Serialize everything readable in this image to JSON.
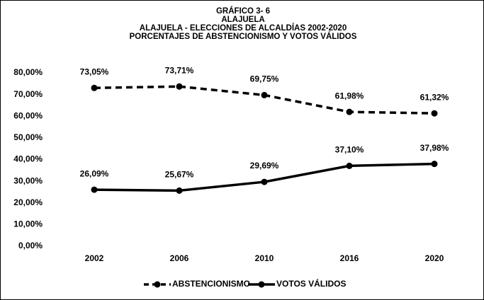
{
  "chart_data": {
    "type": "line",
    "title": [
      "GRÁFICO  3- 6",
      "ALAJUELA",
      "ALAJUELA - ELECCIONES DE ALCALDÍAS 2002-2020",
      "PORCENTAJES DE ABSTENCIONISMO Y VOTOS VÁLIDOS"
    ],
    "categories": [
      "2002",
      "2006",
      "2010",
      "2016",
      "2020"
    ],
    "series": [
      {
        "name": "ABSTENCIONISMO",
        "color": "#000000",
        "line_style": "dashed",
        "values": [
          73.05,
          73.71,
          69.75,
          61.98,
          61.32
        ],
        "value_labels": [
          "73,05%",
          "73,71%",
          "69,75%",
          "61,98%",
          "61,32%"
        ]
      },
      {
        "name": "VOTOS VÁLIDOS",
        "color": "#000000",
        "line_style": "solid",
        "values": [
          26.09,
          25.67,
          29.69,
          37.1,
          37.98
        ],
        "value_labels": [
          "26,09%",
          "25,67%",
          "29,69%",
          "37,10%",
          "37,98%"
        ]
      }
    ],
    "ylim": [
      0,
      80
    ],
    "yticks": [
      {
        "value": 0,
        "label": "0,00%"
      },
      {
        "value": 10,
        "label": "10,00%"
      },
      {
        "value": 20,
        "label": "20,00%"
      },
      {
        "value": 30,
        "label": "30,00%"
      },
      {
        "value": 40,
        "label": "40,00%"
      },
      {
        "value": 50,
        "label": "50,00%"
      },
      {
        "value": 60,
        "label": "60,00%"
      },
      {
        "value": 70,
        "label": "70,00%"
      },
      {
        "value": 80,
        "label": "80,00%"
      }
    ],
    "legend": "bottom"
  }
}
